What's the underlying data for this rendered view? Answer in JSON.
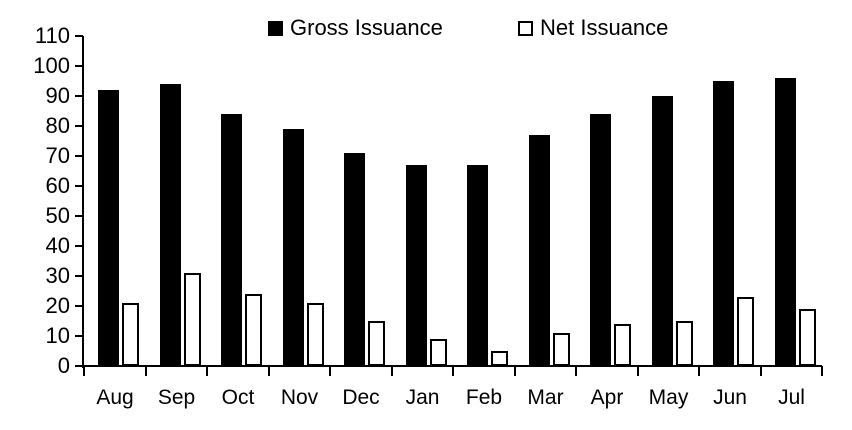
{
  "chart_data": {
    "type": "bar",
    "title": "",
    "xlabel": "",
    "ylabel": "",
    "categories": [
      "Aug",
      "Sep",
      "Oct",
      "Nov",
      "Dec",
      "Jan",
      "Feb",
      "Mar",
      "Apr",
      "May",
      "Jun",
      "Jul"
    ],
    "series": [
      {
        "name": "Gross Issuance",
        "style": "filled",
        "fill": "#000000",
        "values": [
          92,
          94,
          84,
          79,
          71,
          67,
          67,
          77,
          84,
          90,
          95,
          96
        ]
      },
      {
        "name": "Net Issuance",
        "style": "hollow",
        "fill": "#ffffff",
        "border": "#000000",
        "values": [
          21,
          31,
          24,
          21,
          15,
          9,
          5,
          11,
          14,
          15,
          23,
          19
        ]
      }
    ],
    "ylim": [
      0,
      110
    ],
    "ytick_step": 10,
    "yticks": [
      0,
      10,
      20,
      30,
      40,
      50,
      60,
      70,
      80,
      90,
      100,
      110
    ],
    "grid": false,
    "legend_position": "top",
    "axis_color": "#000000",
    "background_color": "#ffffff"
  }
}
